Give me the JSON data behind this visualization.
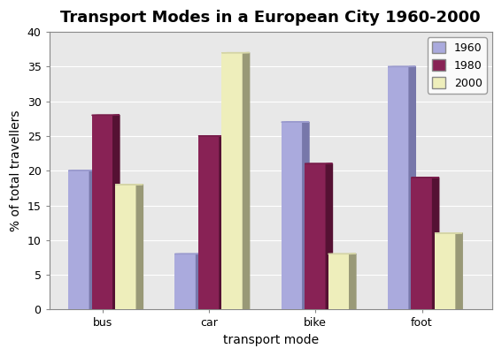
{
  "title": "Transport Modes in a European City 1960-2000",
  "xlabel": "transport mode",
  "ylabel": "% of total travellers",
  "categories": [
    "bus",
    "car",
    "bike",
    "foot"
  ],
  "years": [
    "1960",
    "1980",
    "2000"
  ],
  "values": {
    "1960": [
      20,
      8,
      27,
      35
    ],
    "1980": [
      28,
      25,
      21,
      19
    ],
    "2000": [
      18,
      37,
      8,
      11
    ]
  },
  "bar_colors": {
    "1960": "#aaaadd",
    "1980": "#882255",
    "2000": "#eeeebb"
  },
  "bar_side_colors": {
    "1960": "#7777aa",
    "1980": "#551133",
    "2000": "#999977"
  },
  "ylim": [
    0,
    40
  ],
  "yticks": [
    0,
    5,
    10,
    15,
    20,
    25,
    30,
    35,
    40
  ],
  "bar_width": 0.2,
  "depth": 0.06,
  "background_color": "#ffffff",
  "plot_bg_color": "#e8e8e8",
  "grid_color": "#ffffff",
  "title_fontsize": 13,
  "axis_label_fontsize": 10,
  "tick_fontsize": 9,
  "legend_fontsize": 9
}
